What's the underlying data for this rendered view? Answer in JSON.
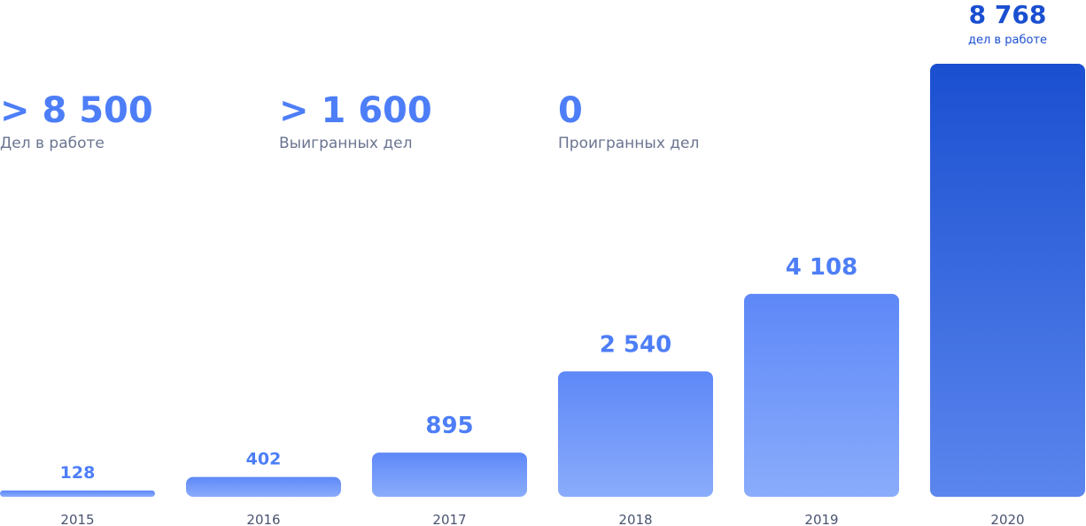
{
  "stats": [
    {
      "value": "> 8 500",
      "label": "Дел в работе"
    },
    {
      "value": "> 1 600",
      "label": "Выигранных дел"
    },
    {
      "value": "0",
      "label": "Проигранных дел"
    }
  ],
  "chart_data": {
    "type": "bar",
    "categories": [
      "2015",
      "2016",
      "2017",
      "2018",
      "2019",
      "2020"
    ],
    "values": [
      128,
      402,
      895,
      2540,
      4108,
      8768
    ],
    "value_labels": [
      "128",
      "402",
      "895",
      "2 540",
      "4 108",
      "8 768"
    ],
    "highlight": {
      "index": 5,
      "sublabel": "дел в работе"
    },
    "colors": {
      "bar_top": "#5e88f8",
      "bar_bottom": "#8aacfb",
      "highlight_top": "#1a4fd0",
      "highlight_bottom": "#5b86ee",
      "value_text": "#4d7ef7",
      "highlight_text": "#1a4fd0",
      "year_text": "#4a5470"
    },
    "grid": false,
    "legend": "none"
  }
}
